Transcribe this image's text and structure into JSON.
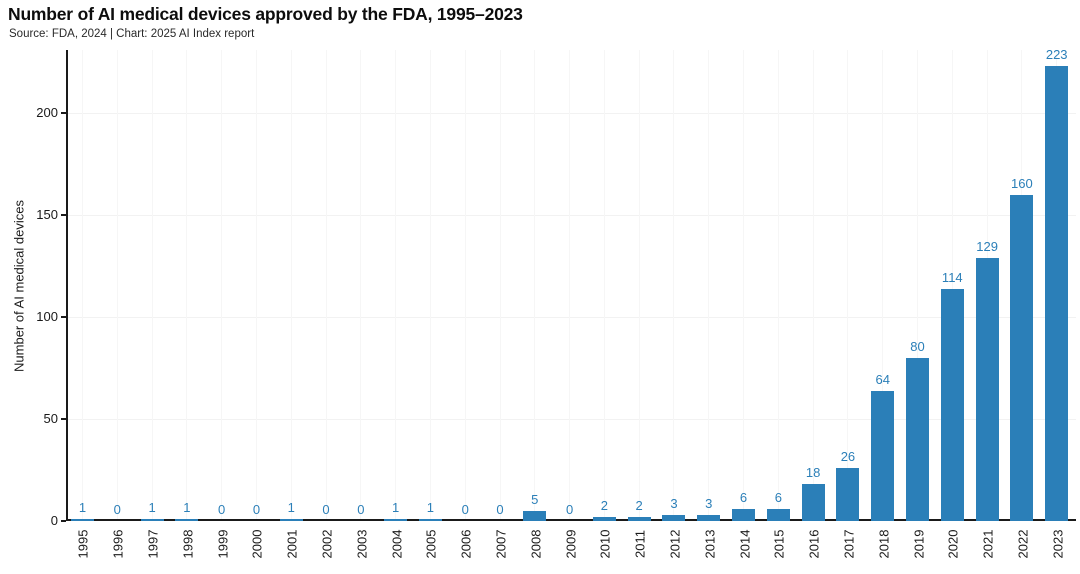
{
  "header": {
    "title": "Number of AI medical devices approved by the FDA, 1995–2023",
    "source": "Source: FDA, 2024 | Chart: 2025 AI Index report"
  },
  "chart_data": {
    "type": "bar",
    "title": "Number of AI medical devices approved by the FDA, 1995–2023",
    "subtitle": "Source: FDA, 2024 | Chart: 2025 AI Index report",
    "categories": [
      "1995",
      "1996",
      "1997",
      "1998",
      "1999",
      "2000",
      "2001",
      "2002",
      "2003",
      "2004",
      "2005",
      "2006",
      "2007",
      "2008",
      "2009",
      "2010",
      "2011",
      "2012",
      "2013",
      "2014",
      "2015",
      "2016",
      "2017",
      "2018",
      "2019",
      "2020",
      "2021",
      "2022",
      "2023"
    ],
    "values": [
      1,
      0,
      1,
      1,
      0,
      0,
      1,
      0,
      0,
      1,
      1,
      0,
      0,
      5,
      0,
      2,
      2,
      3,
      3,
      6,
      6,
      18,
      26,
      64,
      80,
      114,
      129,
      160,
      223
    ],
    "xlabel": "",
    "ylabel": "Number of AI medical devices",
    "yticks": [
      0,
      50,
      100,
      150,
      200
    ],
    "ylim": [
      0,
      231
    ],
    "grid": "faint horizontal at yticks and faint vertical per category",
    "legend": "none",
    "data_labels": "above each bar, same color as bars",
    "colors": {
      "bar": "#2b7fb8",
      "value_label": "#2b7fb8",
      "axis": "#1a1a1a",
      "hgrid": "#f2f2f2",
      "vgrid": "#f6f6f6",
      "title": "#0d0d0d",
      "source": "#2a2a2a"
    }
  }
}
